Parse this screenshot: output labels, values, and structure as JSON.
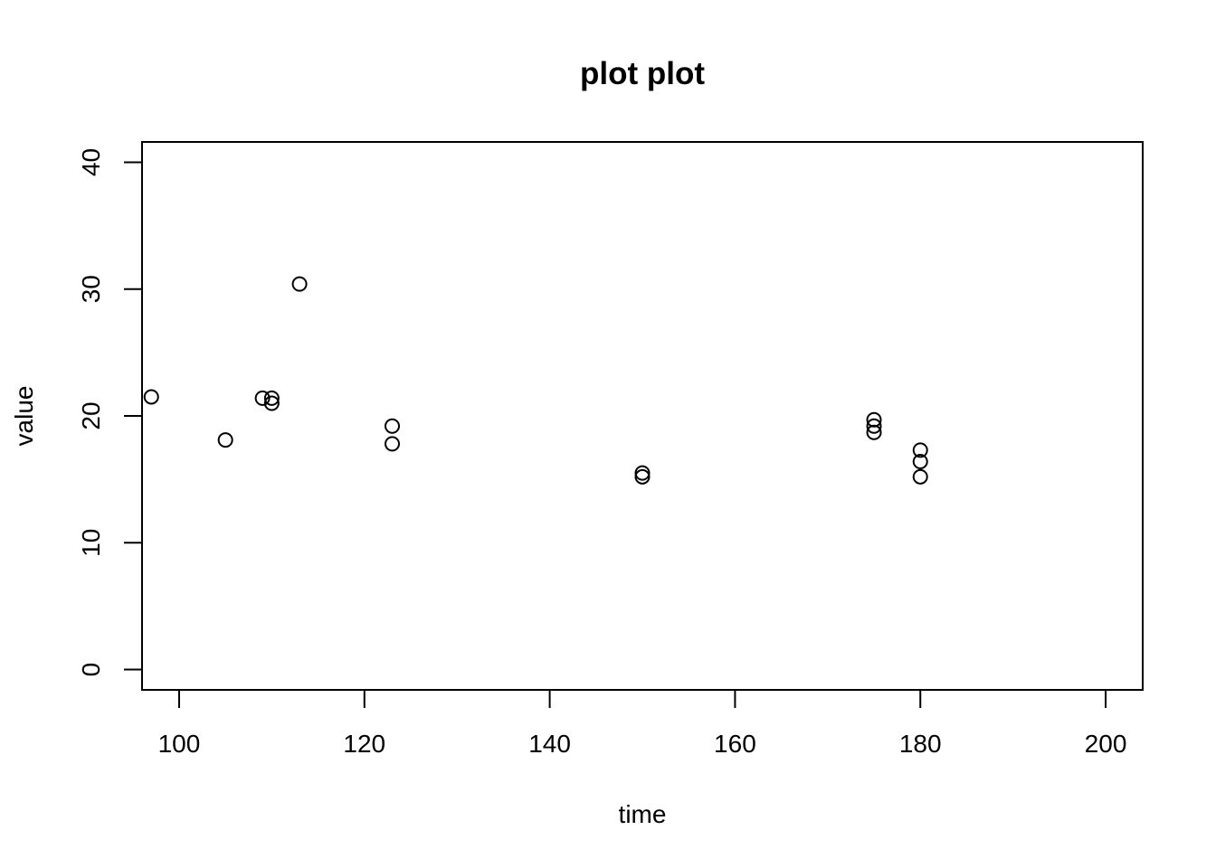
{
  "chart_data": {
    "type": "scatter",
    "title": "plot plot",
    "xlabel": "time",
    "ylabel": "value",
    "xlim": [
      96,
      204
    ],
    "ylim": [
      -1.6,
      41.6
    ],
    "xticks": [
      100,
      120,
      140,
      160,
      180,
      200
    ],
    "yticks": [
      0,
      10,
      20,
      30,
      40
    ],
    "grid": false,
    "marker": "open-circle",
    "points": [
      {
        "x": 97,
        "y": 21.5
      },
      {
        "x": 105,
        "y": 18.1
      },
      {
        "x": 109,
        "y": 21.4
      },
      {
        "x": 110,
        "y": 21.4
      },
      {
        "x": 110,
        "y": 21.0
      },
      {
        "x": 113,
        "y": 30.4
      },
      {
        "x": 123,
        "y": 19.2
      },
      {
        "x": 123,
        "y": 17.8
      },
      {
        "x": 150,
        "y": 15.5
      },
      {
        "x": 150,
        "y": 15.2
      },
      {
        "x": 175,
        "y": 19.7
      },
      {
        "x": 175,
        "y": 19.2
      },
      {
        "x": 175,
        "y": 18.7
      },
      {
        "x": 180,
        "y": 17.3
      },
      {
        "x": 180,
        "y": 16.4
      },
      {
        "x": 180,
        "y": 15.2
      }
    ]
  }
}
